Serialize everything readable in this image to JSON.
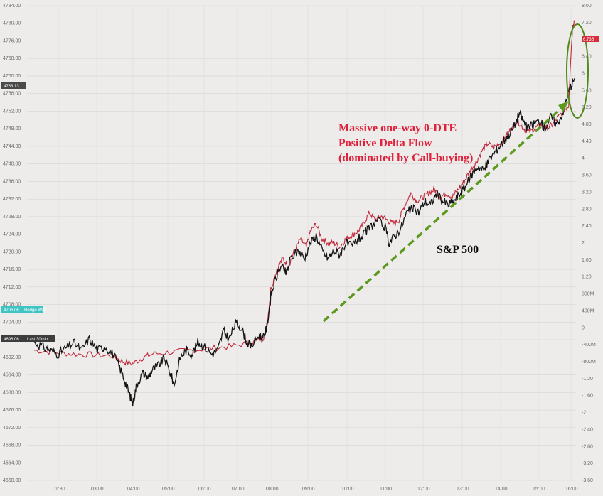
{
  "chart_data": {
    "type": "line",
    "title": "",
    "annotation_lines": [
      "Massive one-way 0-DTE",
      "Positive Delta Flow",
      "(dominated by Call-buying)"
    ],
    "series_label": "S&P 500",
    "x_ticks": [
      "01:30",
      "03:00",
      "04:00",
      "05:00",
      "06:00",
      "07:00",
      "08:00",
      "09:00",
      "10:00",
      "11:00",
      "12:00",
      "13:00",
      "14:00",
      "15:00",
      "16:00"
    ],
    "y_left_ticks": [
      "4784.00",
      "4780.00",
      "4776.00",
      "4768.00",
      "4760.00",
      "4756.00",
      "4752.00",
      "4748.00",
      "4744.00",
      "4740.00",
      "4736.00",
      "4732.00",
      "4728.00",
      "4724.00",
      "4720.00",
      "4716.00",
      "4712.00",
      "4708.00",
      "4704.00",
      "4700.00",
      "4692.00",
      "4684.00",
      "4680.00",
      "4676.00",
      "4672.00",
      "4668.00",
      "4664.00",
      "4660.00"
    ],
    "y_right_ticks": [
      "8.00",
      "7.20",
      "6.80",
      "6.40",
      "6",
      "5.60",
      "5.20",
      "4.80",
      "4.40",
      "4",
      "3.60",
      "3.20",
      "2.80",
      "2.40",
      "2",
      "1.60",
      "1.20",
      "800M",
      "400M",
      "0",
      "-400M",
      "-800M",
      "-1.20",
      "-1.60",
      "-2",
      "-2.40",
      "-2.80",
      "-3.20",
      "-3.60"
    ],
    "tags": {
      "price": "4763.13",
      "hedge_value": "4706.06",
      "hedge_label": "Hedge Wall",
      "start_value": "4696.06",
      "start_label": "Last 30min",
      "delta_value": "6.73B"
    },
    "sp500": [
      [
        0,
        4696
      ],
      [
        0.4,
        4695
      ],
      [
        0.8,
        4694
      ],
      [
        1.2,
        4693
      ],
      [
        1.6,
        4694.5
      ],
      [
        2,
        4696
      ],
      [
        2.4,
        4694
      ],
      [
        2.8,
        4697
      ],
      [
        3.2,
        4694
      ],
      [
        3.6,
        4695
      ],
      [
        4,
        4693
      ],
      [
        4.3,
        4690
      ],
      [
        4.6,
        4686
      ],
      [
        4.8,
        4683
      ],
      [
        5,
        4680
      ],
      [
        5.2,
        4685
      ],
      [
        5.5,
        4688
      ],
      [
        5.8,
        4687
      ],
      [
        6,
        4689
      ],
      [
        6.3,
        4690
      ],
      [
        6.6,
        4692
      ],
      [
        6.9,
        4688
      ],
      [
        7.1,
        4685
      ],
      [
        7.4,
        4692
      ],
      [
        7.7,
        4694
      ],
      [
        8,
        4693
      ],
      [
        8.3,
        4696
      ],
      [
        8.6,
        4695
      ],
      [
        9,
        4693
      ],
      [
        9.3,
        4694
      ],
      [
        9.6,
        4699
      ],
      [
        9.9,
        4697
      ],
      [
        10.2,
        4701
      ],
      [
        10.5,
        4700
      ],
      [
        10.8,
        4696
      ],
      [
        11,
        4695
      ],
      [
        11.4,
        4698
      ],
      [
        11.6,
        4697
      ],
      [
        11.8,
        4700
      ],
      [
        12,
        4708
      ],
      [
        12.2,
        4712
      ],
      [
        12.5,
        4716
      ],
      [
        12.8,
        4714
      ],
      [
        13,
        4718
      ],
      [
        13.4,
        4720
      ],
      [
        13.7,
        4718
      ],
      [
        14,
        4722
      ],
      [
        14.3,
        4724
      ],
      [
        14.6,
        4720
      ],
      [
        14.9,
        4718
      ],
      [
        15.2,
        4720
      ],
      [
        15.5,
        4719
      ],
      [
        15.8,
        4722
      ],
      [
        16.1,
        4721
      ],
      [
        16.4,
        4723
      ],
      [
        16.7,
        4724
      ],
      [
        17,
        4726
      ],
      [
        17.4,
        4728
      ],
      [
        17.8,
        4726
      ],
      [
        18,
        4722
      ],
      [
        18.3,
        4724
      ],
      [
        18.6,
        4726
      ],
      [
        18.9,
        4730
      ],
      [
        19.2,
        4731
      ],
      [
        19.5,
        4730
      ],
      [
        19.8,
        4733
      ],
      [
        20.1,
        4732
      ],
      [
        20.4,
        4735
      ],
      [
        20.7,
        4733
      ],
      [
        21,
        4732
      ],
      [
        21.3,
        4733
      ],
      [
        21.6,
        4735
      ],
      [
        21.9,
        4737
      ],
      [
        22.2,
        4740
      ],
      [
        22.5,
        4742
      ],
      [
        22.8,
        4741
      ],
      [
        23.1,
        4744
      ],
      [
        23.4,
        4746
      ],
      [
        23.7,
        4748
      ],
      [
        24,
        4750
      ],
      [
        24.3,
        4752
      ],
      [
        24.6,
        4756
      ],
      [
        24.8,
        4754
      ],
      [
        25,
        4752
      ],
      [
        25.3,
        4753
      ],
      [
        25.6,
        4754
      ],
      [
        25.9,
        4752
      ],
      [
        26.2,
        4755
      ],
      [
        26.5,
        4753
      ],
      [
        26.8,
        4756
      ],
      [
        27,
        4760
      ],
      [
        27.2,
        4763
      ],
      [
        27.4,
        4765
      ]
    ],
    "delta_flow": [
      [
        0,
        4694
      ],
      [
        1,
        4693.5
      ],
      [
        2,
        4693
      ],
      [
        3,
        4692.8
      ],
      [
        4,
        4692.5
      ],
      [
        4.5,
        4691
      ],
      [
        5,
        4690.5
      ],
      [
        5.5,
        4692
      ],
      [
        6,
        4693
      ],
      [
        7,
        4693.5
      ],
      [
        8,
        4694
      ],
      [
        9,
        4694.5
      ],
      [
        10,
        4695
      ],
      [
        11,
        4696
      ],
      [
        11.6,
        4697
      ],
      [
        11.8,
        4700
      ],
      [
        12,
        4710
      ],
      [
        12.3,
        4715
      ],
      [
        12.6,
        4718
      ],
      [
        12.9,
        4716
      ],
      [
        13.2,
        4720
      ],
      [
        13.5,
        4723
      ],
      [
        13.8,
        4721
      ],
      [
        14,
        4725
      ],
      [
        14.3,
        4727
      ],
      [
        14.6,
        4723
      ],
      [
        14.9,
        4722
      ],
      [
        15.2,
        4722
      ],
      [
        15.5,
        4721
      ],
      [
        15.8,
        4723
      ],
      [
        16.1,
        4724
      ],
      [
        16.4,
        4725
      ],
      [
        16.7,
        4727
      ],
      [
        17,
        4730
      ],
      [
        17.3,
        4728
      ],
      [
        17.6,
        4729
      ],
      [
        17.9,
        4728
      ],
      [
        18.2,
        4727
      ],
      [
        18.5,
        4728
      ],
      [
        18.8,
        4732
      ],
      [
        19.1,
        4735
      ],
      [
        19.4,
        4733
      ],
      [
        19.7,
        4734
      ],
      [
        20,
        4735
      ],
      [
        20.3,
        4736
      ],
      [
        20.6,
        4734
      ],
      [
        20.9,
        4735
      ],
      [
        21.2,
        4734
      ],
      [
        21.5,
        4736
      ],
      [
        21.8,
        4738
      ],
      [
        22.1,
        4741
      ],
      [
        22.4,
        4743
      ],
      [
        22.7,
        4746
      ],
      [
        23,
        4748
      ],
      [
        23.3,
        4747
      ],
      [
        23.6,
        4748
      ],
      [
        23.9,
        4750
      ],
      [
        24.2,
        4752
      ],
      [
        24.5,
        4754
      ],
      [
        24.8,
        4752
      ],
      [
        25.1,
        4751
      ],
      [
        25.4,
        4752
      ],
      [
        25.7,
        4753
      ],
      [
        26,
        4752
      ],
      [
        26.3,
        4753
      ],
      [
        26.6,
        4755
      ],
      [
        26.9,
        4757
      ],
      [
        27.1,
        4758
      ],
      [
        27.2,
        4770
      ],
      [
        27.3,
        4778
      ],
      [
        27.4,
        4780
      ]
    ]
  }
}
